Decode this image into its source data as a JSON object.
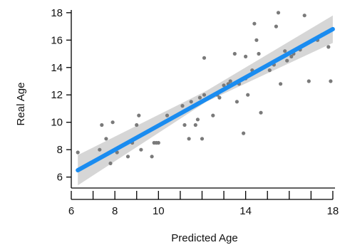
{
  "chart_data": {
    "type": "scatter",
    "title": "",
    "xlabel": "Predicted Age",
    "ylabel": "Real Age",
    "xlim": [
      6.0,
      18.1
    ],
    "ylim": [
      5.2,
      18.2
    ],
    "x_ticks": [
      6,
      8,
      10,
      14,
      18
    ],
    "x_minor_ticks": [
      7,
      9,
      11,
      12,
      13,
      15,
      16,
      17
    ],
    "y_ticks": [
      6,
      8,
      10,
      12,
      14,
      16,
      18
    ],
    "grid": false,
    "legend": "none",
    "colors": {
      "points": "#7a7a7a",
      "fit_line": "#1a8cf0",
      "confidence_band": "#cfcfcf"
    },
    "fit_line": {
      "x": [
        6.3,
        18.0
      ],
      "y": [
        6.5,
        16.8
      ]
    },
    "confidence_band": {
      "x": [
        6.3,
        12.2,
        18.0
      ],
      "lower": [
        5.4,
        11.5,
        15.8
      ],
      "upper": [
        7.6,
        12.3,
        17.8
      ]
    },
    "points": {
      "x": [
        6.3,
        7.3,
        7.4,
        7.6,
        7.8,
        7.9,
        8.1,
        8.6,
        8.8,
        9.0,
        9.1,
        9.2,
        9.7,
        9.8,
        9.9,
        10.0,
        10.4,
        11.1,
        11.2,
        11.4,
        11.5,
        11.7,
        11.8,
        11.9,
        12.0,
        12.1,
        12.1,
        12.5,
        12.7,
        12.8,
        13.0,
        13.2,
        13.3,
        13.5,
        13.6,
        13.7,
        13.9,
        14.0,
        14.0,
        14.1,
        14.3,
        14.4,
        14.5,
        14.6,
        14.7,
        15.1,
        15.3,
        15.4,
        15.5,
        15.6,
        15.8,
        15.9,
        16.1,
        16.2,
        16.5,
        16.7,
        16.9,
        17.3,
        17.5,
        17.8,
        17.9
      ],
      "y": [
        7.8,
        8.0,
        9.8,
        8.8,
        7.0,
        10.0,
        7.8,
        7.5,
        8.5,
        9.8,
        10.5,
        8.0,
        7.5,
        8.5,
        8.5,
        8.5,
        10.5,
        11.2,
        9.8,
        8.8,
        11.5,
        9.8,
        10.2,
        11.8,
        8.8,
        14.7,
        12.0,
        10.5,
        12.0,
        11.8,
        12.7,
        12.8,
        13.0,
        15.0,
        11.5,
        12.8,
        9.2,
        13.2,
        14.8,
        12.0,
        13.8,
        17.2,
        16.0,
        15.0,
        10.7,
        13.8,
        14.2,
        17.0,
        18.0,
        12.8,
        15.2,
        14.5,
        14.8,
        15.0,
        15.3,
        17.8,
        13.0,
        16.0,
        16.4,
        15.5,
        13.0
      ]
    }
  }
}
